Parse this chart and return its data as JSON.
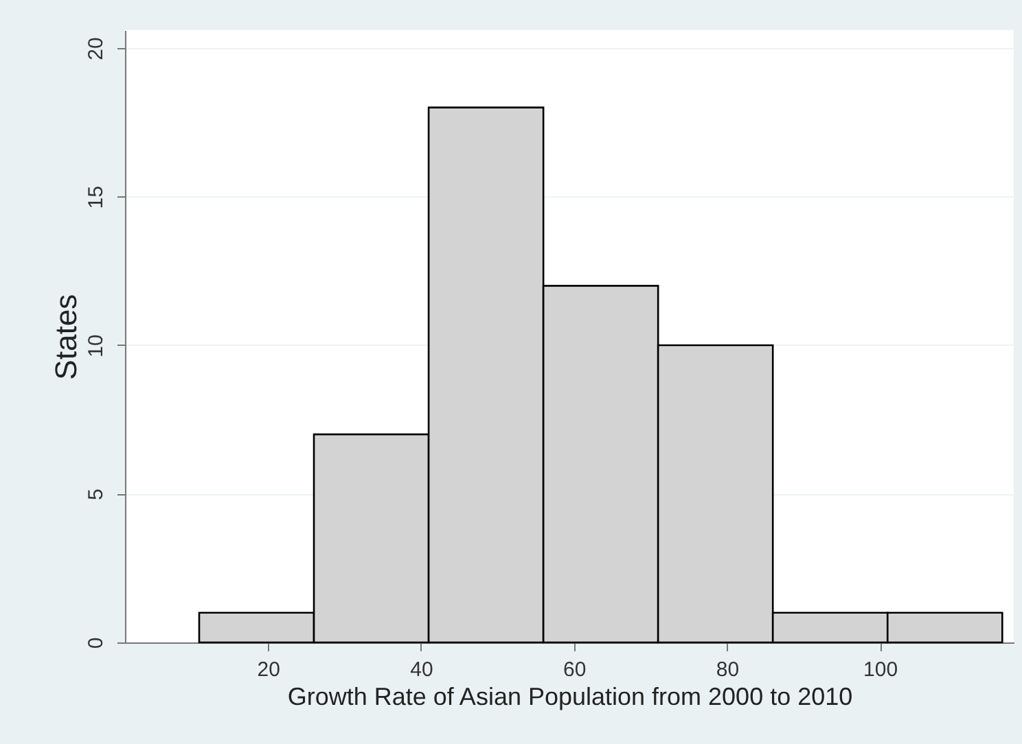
{
  "chart_data": {
    "type": "histogram",
    "xlabel": "Growth Rate of Asian Population from 2000 to 2010",
    "ylabel": "States",
    "bins": [
      11,
      26,
      41,
      56,
      71,
      86,
      101,
      116
    ],
    "values": [
      1,
      7,
      18,
      12,
      10,
      1,
      1
    ],
    "color": "#d3d3d3",
    "xlim": [
      1.3,
      117.5
    ],
    "xticks": [
      20,
      40,
      60,
      80,
      100
    ],
    "ylim": [
      0,
      20.6
    ],
    "yticks": [
      0,
      5,
      10,
      15,
      20
    ],
    "grid": "y"
  }
}
